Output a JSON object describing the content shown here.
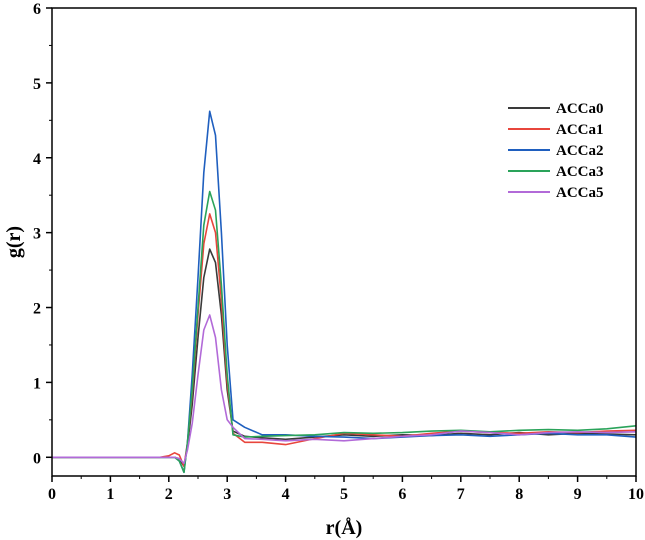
{
  "chart_data": {
    "type": "line",
    "xlabel": "r(Å)",
    "ylabel": "g(r)",
    "xlim": [
      0,
      10
    ],
    "ylim": [
      -0.25,
      6
    ],
    "x_ticks": [
      "0",
      "1",
      "2",
      "3",
      "4",
      "5",
      "6",
      "7",
      "8",
      "9",
      "10"
    ],
    "y_ticks": [
      "0",
      "1",
      "2",
      "3",
      "4",
      "5",
      "6"
    ],
    "grid": false,
    "legend_position": "right",
    "series": [
      {
        "name": "ACCa0",
        "color": "#3a3a3a",
        "points": [
          [
            0,
            0
          ],
          [
            1.85,
            0
          ],
          [
            2.1,
            0
          ],
          [
            2.18,
            -0.02
          ],
          [
            2.26,
            -0.12
          ],
          [
            2.32,
            0.15
          ],
          [
            2.4,
            0.7
          ],
          [
            2.5,
            1.6
          ],
          [
            2.6,
            2.4
          ],
          [
            2.7,
            2.78
          ],
          [
            2.8,
            2.6
          ],
          [
            2.9,
            1.9
          ],
          [
            3.0,
            0.9
          ],
          [
            3.1,
            0.35
          ],
          [
            3.3,
            0.28
          ],
          [
            3.6,
            0.26
          ],
          [
            4.0,
            0.24
          ],
          [
            4.5,
            0.27
          ],
          [
            5.0,
            0.3
          ],
          [
            5.5,
            0.28
          ],
          [
            6.0,
            0.3
          ],
          [
            6.5,
            0.29
          ],
          [
            7.0,
            0.32
          ],
          [
            7.5,
            0.3
          ],
          [
            8.0,
            0.33
          ],
          [
            8.5,
            0.3
          ],
          [
            9.0,
            0.32
          ],
          [
            9.5,
            0.31
          ],
          [
            10.0,
            0.3
          ]
        ]
      },
      {
        "name": "ACCa1",
        "color": "#e8463c",
        "points": [
          [
            0,
            0
          ],
          [
            1.85,
            0
          ],
          [
            2.0,
            0.02
          ],
          [
            2.1,
            0.06
          ],
          [
            2.18,
            0.03
          ],
          [
            2.26,
            -0.12
          ],
          [
            2.32,
            0.2
          ],
          [
            2.4,
            0.85
          ],
          [
            2.5,
            1.9
          ],
          [
            2.6,
            2.85
          ],
          [
            2.7,
            3.25
          ],
          [
            2.8,
            3.0
          ],
          [
            2.9,
            2.1
          ],
          [
            3.0,
            1.0
          ],
          [
            3.1,
            0.32
          ],
          [
            3.3,
            0.2
          ],
          [
            3.6,
            0.2
          ],
          [
            4.0,
            0.17
          ],
          [
            4.5,
            0.25
          ],
          [
            5.0,
            0.32
          ],
          [
            5.5,
            0.3
          ],
          [
            6.0,
            0.28
          ],
          [
            6.5,
            0.32
          ],
          [
            7.0,
            0.35
          ],
          [
            7.5,
            0.33
          ],
          [
            8.0,
            0.32
          ],
          [
            8.5,
            0.34
          ],
          [
            9.0,
            0.33
          ],
          [
            9.5,
            0.35
          ],
          [
            10.0,
            0.36
          ]
        ]
      },
      {
        "name": "ACCa2",
        "color": "#1f5fbf",
        "points": [
          [
            0,
            0
          ],
          [
            1.85,
            0
          ],
          [
            2.1,
            0
          ],
          [
            2.18,
            -0.05
          ],
          [
            2.26,
            -0.2
          ],
          [
            2.32,
            0.2
          ],
          [
            2.4,
            1.1
          ],
          [
            2.5,
            2.4
          ],
          [
            2.6,
            3.8
          ],
          [
            2.7,
            4.62
          ],
          [
            2.8,
            4.3
          ],
          [
            2.9,
            3.0
          ],
          [
            3.0,
            1.5
          ],
          [
            3.1,
            0.5
          ],
          [
            3.3,
            0.4
          ],
          [
            3.6,
            0.3
          ],
          [
            4.0,
            0.3
          ],
          [
            4.5,
            0.28
          ],
          [
            5.0,
            0.27
          ],
          [
            5.5,
            0.25
          ],
          [
            6.0,
            0.27
          ],
          [
            6.5,
            0.29
          ],
          [
            7.0,
            0.3
          ],
          [
            7.5,
            0.28
          ],
          [
            8.0,
            0.3
          ],
          [
            8.5,
            0.32
          ],
          [
            9.0,
            0.3
          ],
          [
            9.5,
            0.3
          ],
          [
            10.0,
            0.27
          ]
        ]
      },
      {
        "name": "ACCa3",
        "color": "#2aa35a",
        "points": [
          [
            0,
            0
          ],
          [
            1.85,
            0
          ],
          [
            2.1,
            0
          ],
          [
            2.18,
            -0.05
          ],
          [
            2.26,
            -0.2
          ],
          [
            2.32,
            0.2
          ],
          [
            2.4,
            0.9
          ],
          [
            2.5,
            2.0
          ],
          [
            2.6,
            3.1
          ],
          [
            2.7,
            3.55
          ],
          [
            2.8,
            3.3
          ],
          [
            2.9,
            2.3
          ],
          [
            3.0,
            1.1
          ],
          [
            3.1,
            0.3
          ],
          [
            3.3,
            0.27
          ],
          [
            3.6,
            0.28
          ],
          [
            4.0,
            0.29
          ],
          [
            4.5,
            0.3
          ],
          [
            5.0,
            0.33
          ],
          [
            5.5,
            0.32
          ],
          [
            6.0,
            0.33
          ],
          [
            6.5,
            0.35
          ],
          [
            7.0,
            0.36
          ],
          [
            7.5,
            0.34
          ],
          [
            8.0,
            0.36
          ],
          [
            8.5,
            0.37
          ],
          [
            9.0,
            0.36
          ],
          [
            9.5,
            0.38
          ],
          [
            10.0,
            0.42
          ]
        ]
      },
      {
        "name": "ACCa5",
        "color": "#b26ad8",
        "points": [
          [
            0,
            0
          ],
          [
            1.85,
            0
          ],
          [
            2.1,
            0
          ],
          [
            2.18,
            -0.02
          ],
          [
            2.26,
            -0.08
          ],
          [
            2.32,
            0.1
          ],
          [
            2.4,
            0.45
          ],
          [
            2.5,
            1.1
          ],
          [
            2.6,
            1.7
          ],
          [
            2.7,
            1.9
          ],
          [
            2.8,
            1.6
          ],
          [
            2.9,
            0.9
          ],
          [
            3.0,
            0.5
          ],
          [
            3.1,
            0.4
          ],
          [
            3.3,
            0.25
          ],
          [
            3.6,
            0.24
          ],
          [
            4.0,
            0.22
          ],
          [
            4.5,
            0.24
          ],
          [
            5.0,
            0.22
          ],
          [
            5.5,
            0.25
          ],
          [
            6.0,
            0.28
          ],
          [
            6.5,
            0.3
          ],
          [
            7.0,
            0.35
          ],
          [
            7.5,
            0.33
          ],
          [
            8.0,
            0.3
          ],
          [
            8.5,
            0.33
          ],
          [
            9.0,
            0.34
          ],
          [
            9.5,
            0.33
          ],
          [
            10.0,
            0.34
          ]
        ]
      }
    ]
  }
}
